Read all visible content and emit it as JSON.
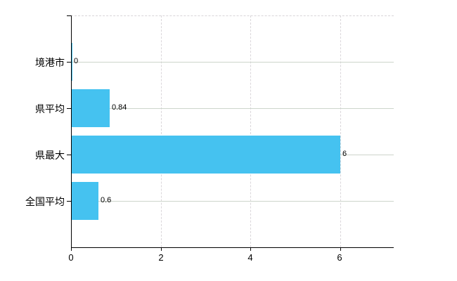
{
  "chart_data": {
    "type": "bar",
    "orientation": "horizontal",
    "title": "",
    "categories": [
      "境港市",
      "県平均",
      "県最大",
      "全国平均"
    ],
    "values": [
      0,
      0.84,
      6,
      0.6
    ],
    "value_labels": [
      "0",
      "0.84",
      "6",
      "0.6"
    ],
    "xlabel": "",
    "ylabel": "",
    "xlim": [
      0,
      7.2
    ],
    "x_ticks": [
      0,
      2,
      4,
      6
    ],
    "x_tick_labels": [
      "0",
      "2",
      "4",
      "6"
    ],
    "grid": {
      "vertical": "dashed",
      "horizontal": "solid",
      "top_border": "dashed"
    },
    "legend": "none",
    "colors": {
      "bar": "#45C2F0",
      "axis": "#000000",
      "text": "#000000",
      "grid_vertical": "#DAD6DA",
      "grid_horizontal": "#CDD5CB",
      "top_border": "#D8D4D8",
      "background": "#FFFFFF"
    }
  }
}
